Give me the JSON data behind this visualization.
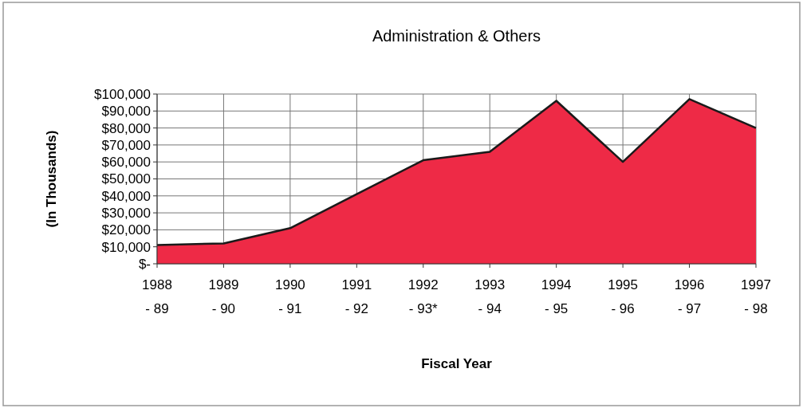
{
  "chart_data": {
    "type": "area",
    "title": "Administration & Others",
    "xlabel": "Fiscal Year",
    "ylabel": "(In Thousands)",
    "categories": [
      "1988\n- 89",
      "1989\n- 90",
      "1990\n- 91",
      "1991\n- 92",
      "1992\n- 93*",
      "1993\n- 94",
      "1994\n- 95",
      "1995\n- 96",
      "1996\n- 97",
      "1997\n- 98"
    ],
    "series": [
      {
        "color": "#ee2a46",
        "values": [
          11000,
          12000,
          21000,
          41000,
          61000,
          66000,
          96000,
          60000,
          97000,
          80000
        ]
      }
    ],
    "ylim": [
      0,
      100000
    ],
    "yticks": [
      {
        "value": 0,
        "label": "$-"
      },
      {
        "value": 10000,
        "label": "$10,000"
      },
      {
        "value": 20000,
        "label": "$20,000"
      },
      {
        "value": 30000,
        "label": "$30,000"
      },
      {
        "value": 40000,
        "label": "$40,000"
      },
      {
        "value": 50000,
        "label": "$50,000"
      },
      {
        "value": 60000,
        "label": "$60,000"
      },
      {
        "value": 70000,
        "label": "$70,000"
      },
      {
        "value": 80000,
        "label": "$80,000"
      },
      {
        "value": 90000,
        "label": "$90,000"
      },
      {
        "value": 100000,
        "label": "$100,000"
      }
    ],
    "grid": true
  }
}
